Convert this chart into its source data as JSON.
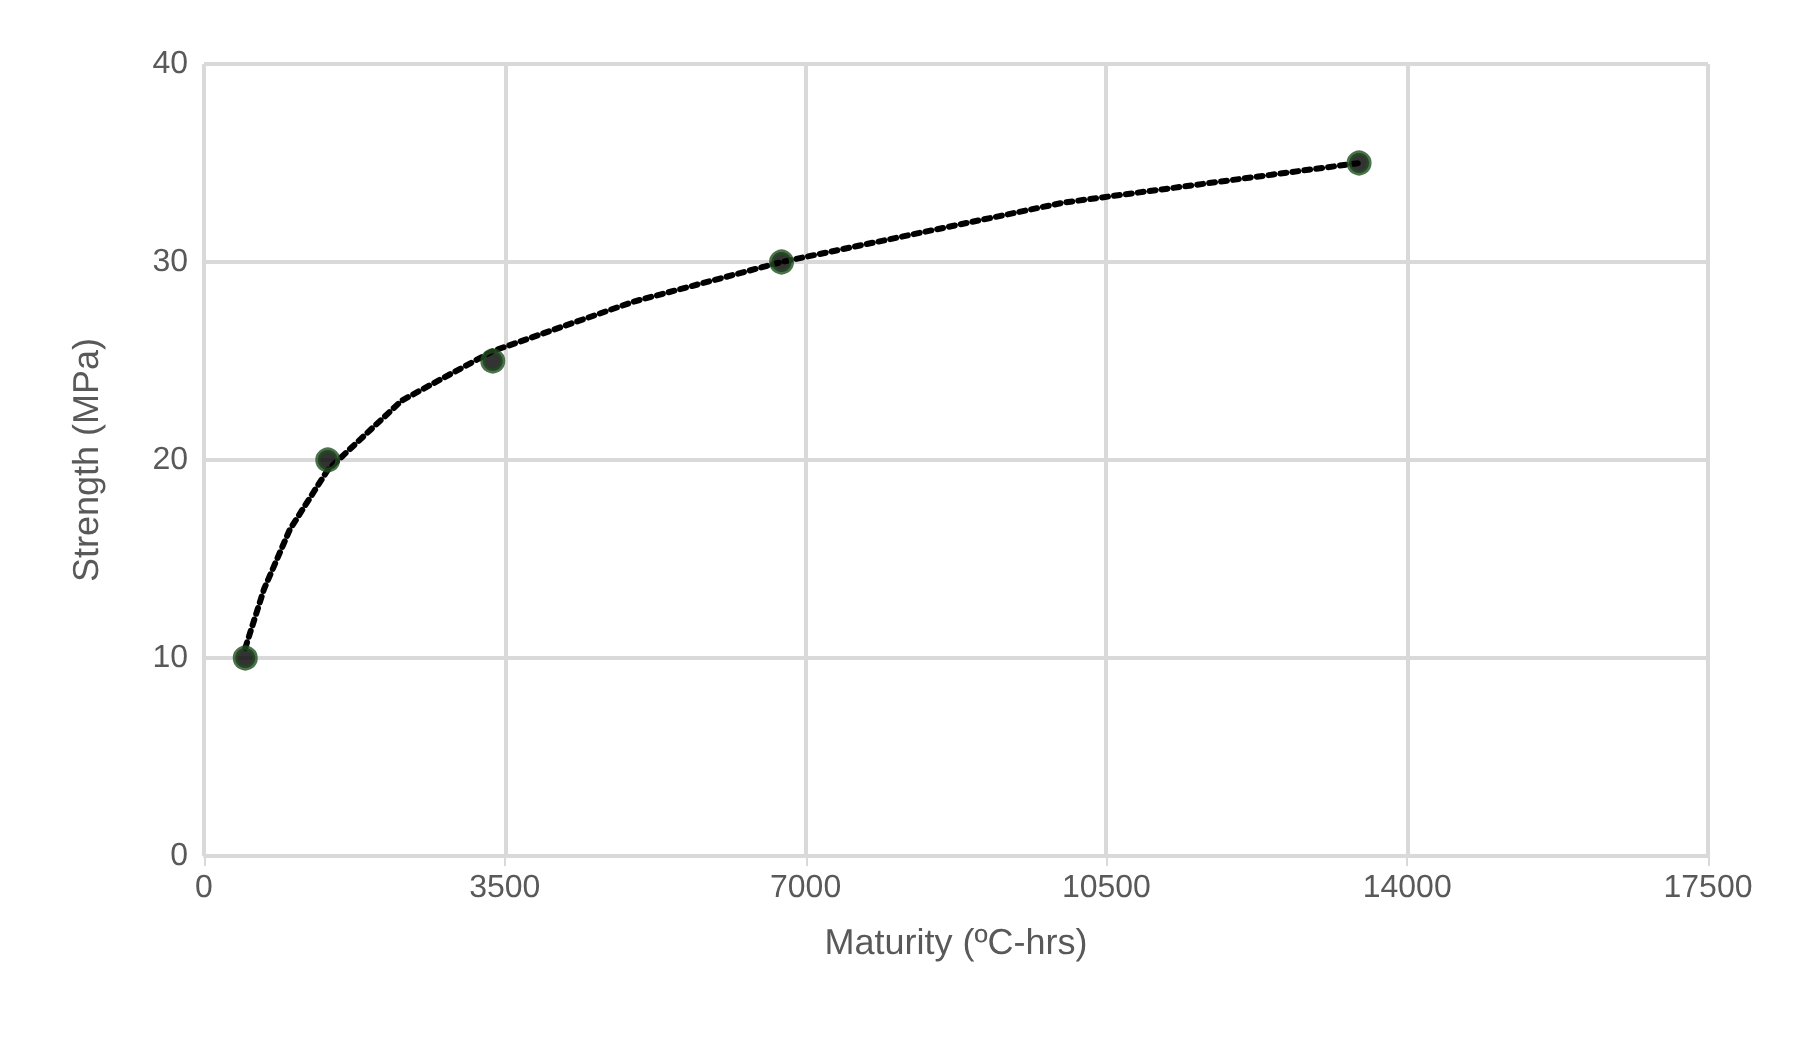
{
  "chart_data": {
    "type": "scatter",
    "xlabel": "Maturity (ºC-hrs)",
    "ylabel": "Strength (MPa)",
    "xlim": [
      0,
      17500
    ],
    "xticks": [
      0,
      3500,
      7000,
      10500,
      14000,
      17500
    ],
    "ylim": [
      0,
      40
    ],
    "yticks": [
      0,
      10,
      20,
      30,
      40
    ],
    "grid": true,
    "series": [
      {
        "color": "#1f4d1f",
        "marker": "circle",
        "x": [
          480,
          1440,
          3360,
          6720,
          13440
        ],
        "values": [
          10,
          20,
          25,
          30,
          35
        ]
      },
      {
        "type": "line",
        "color": "#000000",
        "marker": "none",
        "line_style": "dotted",
        "x": [
          480,
          700,
          1000,
          1440,
          2300,
          3360,
          5000,
          6720,
          10000,
          13440
        ],
        "values": [
          10.5,
          13.5,
          16.5,
          19.5,
          23,
          25.5,
          28,
          30,
          33,
          35
        ]
      }
    ]
  }
}
